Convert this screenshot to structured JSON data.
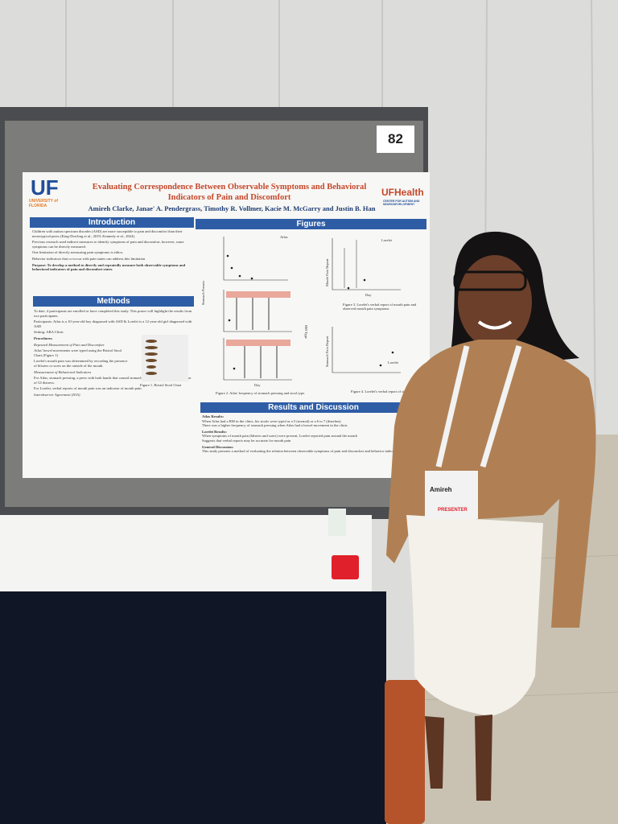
{
  "board_number": "82",
  "poster": {
    "logo_left": {
      "mark": "UF",
      "name": "UNIVERSITY of FLORIDA"
    },
    "logo_right": {
      "mark": "UFHealth",
      "name": "CENTER FOR AUTISM AND NEURODEVELOPMENT"
    },
    "title": "Evaluating Correspondence Between Observable Symptoms and Behavioral Indicators of Pain and Discomfort",
    "authors": "Amireh Clarke, Janae' A. Pendergrass, Timothy R. Vollmer, Kacie M. McGarry and Justin B. Han",
    "introduction": {
      "heading": "Introduction",
      "bullets": [
        "Children with autism spectrum disorder (ASD) are more susceptible to pain and discomfort than their neurotypical peers (King-Dowling et al., 2019; Kennedy et al., 2024).",
        "Previous research used indirect measures to identify symptoms of pain and discomfort, however, some symptoms can be directly measured.",
        "One limitation of directly measuring pain symptoms is ethics.",
        "Behavior indicators that co-occur with pain states can address this limitation"
      ],
      "purpose": "Purpose: To develop a method to directly and repeatedly measure both observable symptoms and behavioral indicators of pain and discomfort states"
    },
    "methods": {
      "heading": "Methods",
      "paragraphs": [
        "To date, 4 participants are enrolled or have completed this study. This poster will highlight the results from two participants.",
        "Participants: Atlas is a 10-year-old boy diagnosed with ASD & Lorelei is a 12-year-old girl diagnosed with ASD",
        "Setting: ABA Clinic",
        "Procedures:",
        "Repeated Measurement of Pain and Discomfort",
        "Atlas' bowel movements were typed using the Bristol Stool Chart (Figure 1)",
        "Lorelei's mouth pain was determined by recording the presence of blisters or sores on the outside of the mouth.",
        "Measurement of Behavioral Indicators",
        "For Atlas, stomach pressing, a press with both hands that caused stomach to bend inward, was an indicator of GI distress.",
        "For Lorelei, verbal reports of mouth pain was an indicator of mouth pain.",
        "Interobserver Agreement (IOA)"
      ],
      "figure_caption": "Figure 1. Bristol Stool Chart"
    },
    "figures": {
      "heading": "Figures",
      "atlas_label": "Atlas",
      "lorelei_label": "Lorelei",
      "y_label_presses": "Stomach Presses",
      "y_label_bm": "BM Type",
      "y_label_mouth": "Mouth Pain Report",
      "y_label_stomach": "Stomach Pain Report",
      "x_label": "Day",
      "caption_2": "Figure 2. Atlas' frequency of stomach pressing and stool type.",
      "caption_3": "Figure 3. Lorelei's verbal report of mouth pain and observed mouth pain symptoms",
      "caption_4": "Figure 4. Lorelei's verbal report of stomach pain"
    },
    "results": {
      "heading": "Results and Discussion",
      "atlas": "Atlas Results:",
      "atlas_bullets": [
        "When Atlas had a BM in the clinic, his stools were typed as a 5 (normal) or a 6 to 7 (diarrhea)",
        "There was a higher frequency of stomach pressing when Atlas had a bowel movement in the clinic"
      ],
      "lorelei": "Lorelei Results:",
      "lorelei_bullets": [
        "When symptoms of mouth pain (blisters and sores) were present, Lorelei reported pain around the mouth",
        "Suggests that verbal reports may be accurate for mouth pain"
      ],
      "general": "General Discussion:",
      "general_text": "This study presents a method of evaluating the relation between observable symptoms of pain and discomfort and behavior indicators."
    }
  },
  "badge": {
    "name": "Amireh",
    "role": "PRESENTER"
  }
}
